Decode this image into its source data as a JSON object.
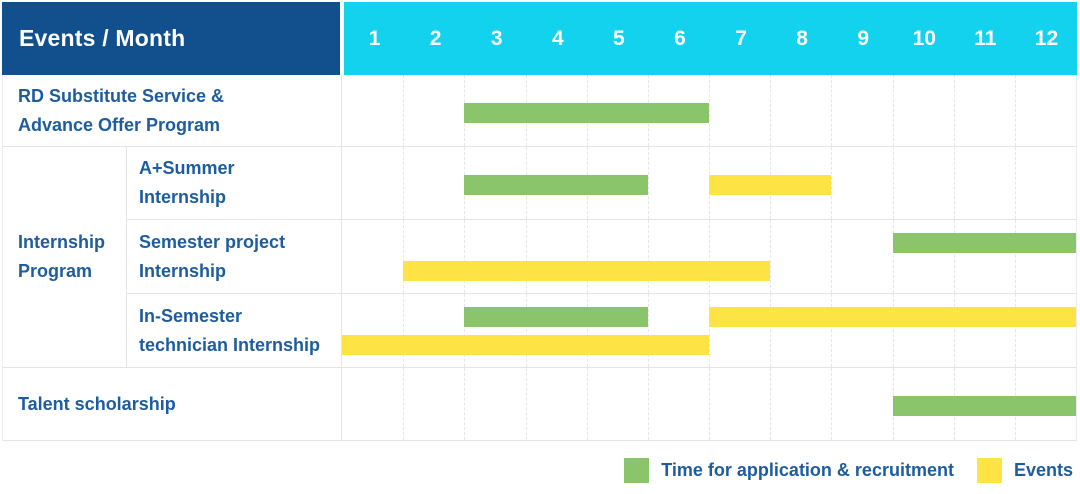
{
  "header": {
    "title": "Events / Month",
    "months": [
      "1",
      "2",
      "3",
      "4",
      "5",
      "6",
      "7",
      "8",
      "9",
      "10",
      "11",
      "12"
    ]
  },
  "colors": {
    "header_bg": "#114F8D",
    "months_bg": "#12D2EE",
    "text_blue": "#1D5C9E",
    "recruitment_green": "#8AC46B",
    "event_yellow": "#FDE343",
    "gridline": "#E6E6EA"
  },
  "legend": [
    {
      "key": "recruitment",
      "label": "Time for application & recruitment"
    },
    {
      "key": "event",
      "label": "Events"
    }
  ],
  "chart_data": {
    "type": "bar",
    "variant": "gantt",
    "x_axis_label": "Month",
    "x_categories": [
      "1",
      "2",
      "3",
      "4",
      "5",
      "6",
      "7",
      "8",
      "9",
      "10",
      "11",
      "12"
    ],
    "group_label": "Internship\nProgram",
    "rows": [
      {
        "label": "RD Substitute Service &\nAdvance Offer Program",
        "group": "",
        "bars": [
          {
            "kind": "recruitment",
            "start": 3,
            "end": 6,
            "track": "single"
          }
        ]
      },
      {
        "label": "A+Summer\nInternship",
        "group": "Internship Program",
        "bars": [
          {
            "kind": "recruitment",
            "start": 3,
            "end": 5,
            "track": "single"
          },
          {
            "kind": "event",
            "start": 7,
            "end": 8,
            "track": "single"
          }
        ]
      },
      {
        "label": "Semester project\nInternship",
        "group": "Internship Program",
        "bars": [
          {
            "kind": "recruitment",
            "start": 10,
            "end": 12,
            "track": "top"
          },
          {
            "kind": "event",
            "start": 2,
            "end": 7,
            "track": "bottom"
          }
        ]
      },
      {
        "label": "In-Semester\ntechnician Internship",
        "group": "Internship Program",
        "bars": [
          {
            "kind": "recruitment",
            "start": 3,
            "end": 5,
            "track": "top"
          },
          {
            "kind": "event",
            "start": 7,
            "end": 12,
            "track": "top"
          },
          {
            "kind": "event",
            "start": 1,
            "end": 6,
            "track": "bottom"
          }
        ]
      },
      {
        "label": "Talent scholarship",
        "group": "",
        "bars": [
          {
            "kind": "recruitment",
            "start": 10,
            "end": 12,
            "track": "single"
          }
        ]
      }
    ]
  }
}
